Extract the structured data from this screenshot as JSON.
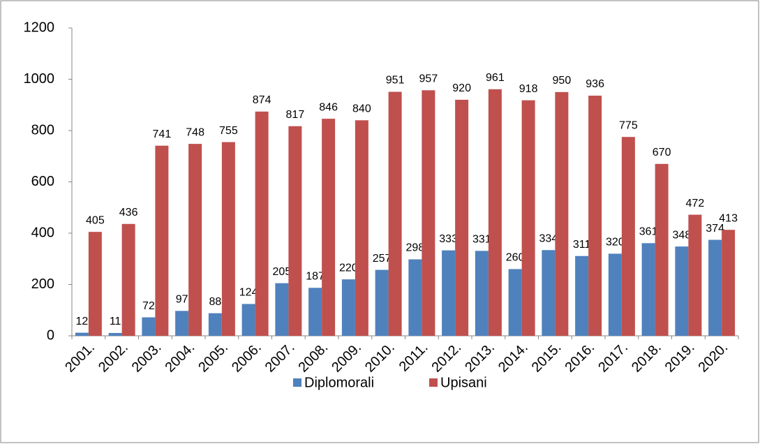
{
  "chart_data": {
    "type": "bar",
    "categories": [
      "2001.",
      "2002.",
      "2003.",
      "2004.",
      "2005.",
      "2006.",
      "2007.",
      "2008.",
      "2009.",
      "2010.",
      "2011.",
      "2012.",
      "2013.",
      "2014.",
      "2015.",
      "2016.",
      "2017.",
      "2018.",
      "2019.",
      "2020."
    ],
    "series": [
      {
        "name": "Diplomorali",
        "color": "#4f81bd",
        "values": [
          12,
          11,
          72,
          97,
          88,
          124,
          205,
          187,
          220,
          257,
          298,
          333,
          331,
          260,
          334,
          311,
          320,
          361,
          348,
          374
        ]
      },
      {
        "name": "Upisani",
        "color": "#c0504d",
        "values": [
          405,
          436,
          741,
          748,
          755,
          874,
          817,
          846,
          840,
          951,
          957,
          920,
          961,
          918,
          950,
          936,
          775,
          670,
          472,
          413
        ]
      }
    ],
    "ylim": [
      0,
      1200
    ],
    "yticks": [
      0,
      200,
      400,
      600,
      800,
      1000,
      1200
    ],
    "grid": false,
    "legend": "bottom"
  }
}
